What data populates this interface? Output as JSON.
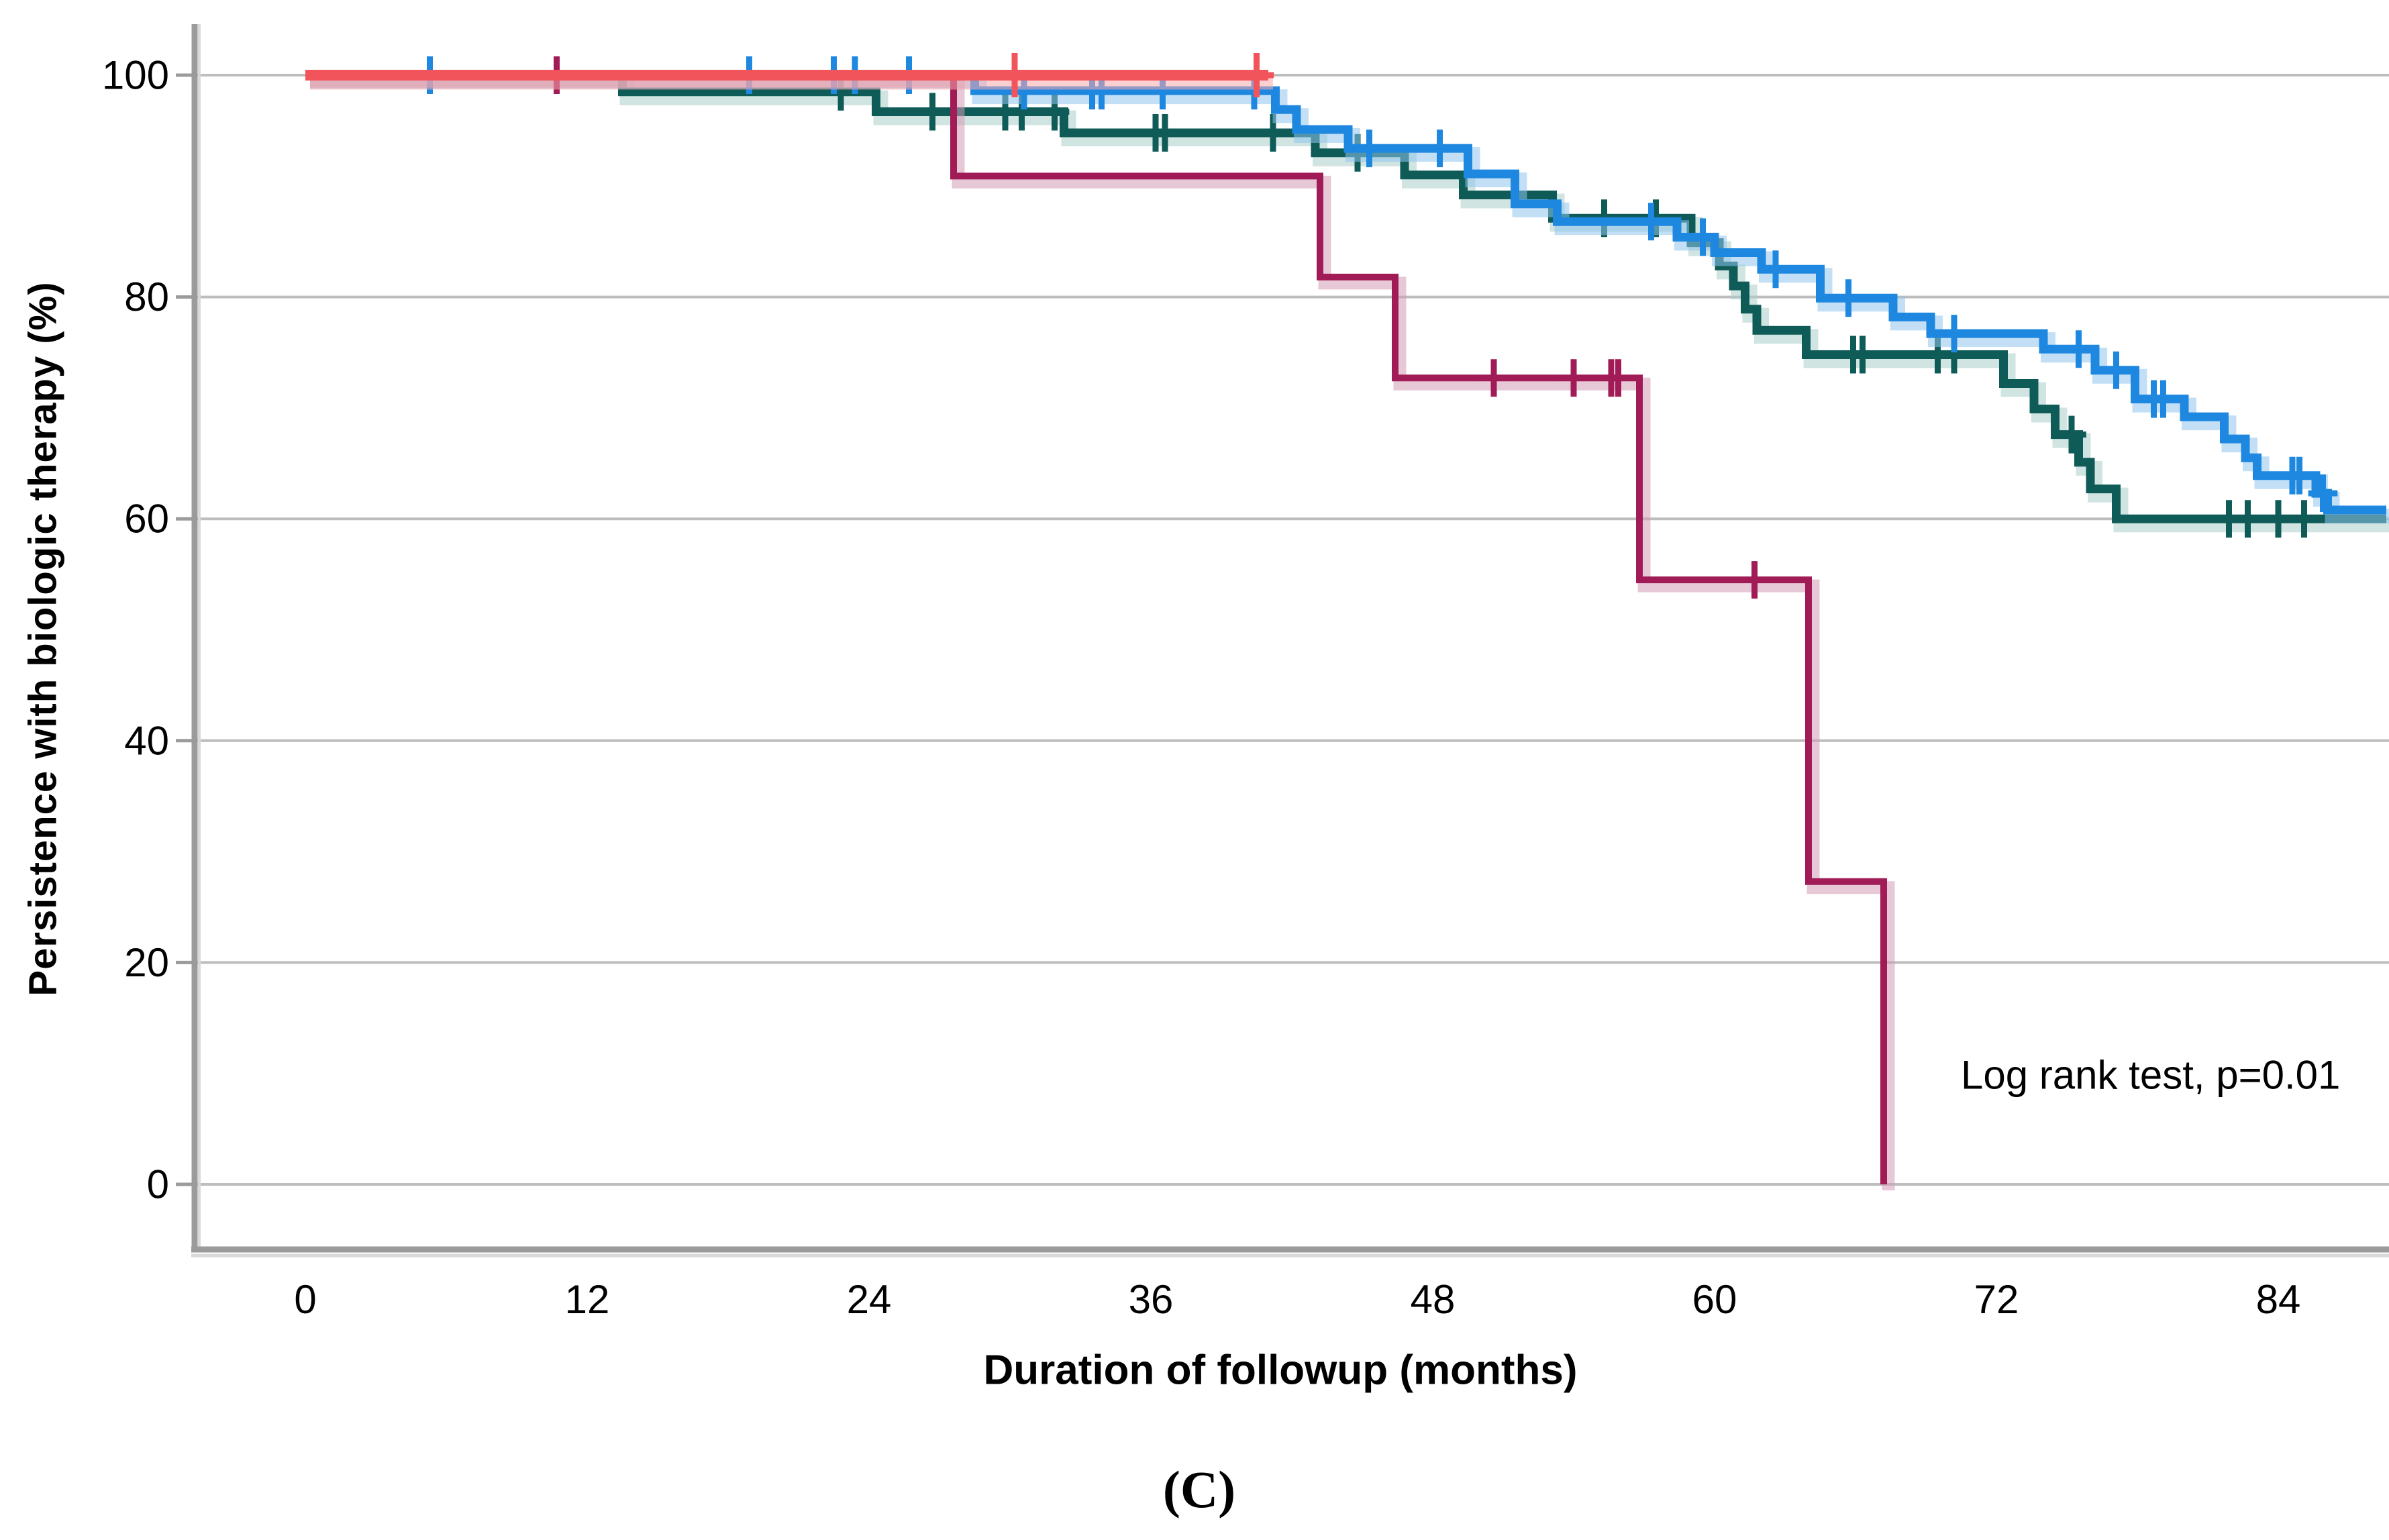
{
  "figure": {
    "caption": "(C)",
    "annotation": "Log rank test, p=0.01"
  },
  "chart_data": {
    "type": "line",
    "subtype": "kaplan-meier-step-curves",
    "title": "",
    "xlabel": "Duration of followup (months)",
    "ylabel": "Persistence with biologic therapy (%)",
    "x_ticks": [
      0,
      12,
      24,
      36,
      48,
      60,
      72,
      84
    ],
    "y_ticks": [
      0,
      20,
      40,
      60,
      80,
      100
    ],
    "xlim": [
      0,
      88.6
    ],
    "ylim": [
      0,
      100
    ],
    "grid": "horizontal-only",
    "grid_color": "#bdbdbd",
    "axis_color": "#9b9b9b",
    "legend_position": "none",
    "annotation": "Log rank test, p=0.01",
    "series": [
      {
        "id": "teal",
        "color": "#0f5b58",
        "halo": "#a9cdc8",
        "width": 13,
        "censor_size": 28,
        "end": 88.6,
        "steps": [
          [
            0,
            100
          ],
          [
            13.5,
            98.5
          ],
          [
            24.3,
            96.7
          ],
          [
            32.3,
            94.8
          ],
          [
            43.0,
            93.0
          ],
          [
            46.8,
            91.0
          ],
          [
            49.3,
            89.2
          ],
          [
            53.1,
            87.1
          ],
          [
            59.0,
            84.9
          ],
          [
            60.2,
            82.8
          ],
          [
            60.8,
            81.0
          ],
          [
            61.3,
            78.9
          ],
          [
            61.8,
            77.0
          ],
          [
            63.9,
            74.8
          ],
          [
            72.3,
            72.2
          ],
          [
            73.6,
            69.9
          ],
          [
            74.5,
            67.6
          ],
          [
            75.5,
            65.1
          ],
          [
            76.0,
            62.7
          ],
          [
            77.1,
            60.0
          ]
        ],
        "censors": [
          [
            22.8,
            98.5
          ],
          [
            26.7,
            96.7
          ],
          [
            29.8,
            96.7
          ],
          [
            30.5,
            96.7
          ],
          [
            31.9,
            96.7
          ],
          [
            36.2,
            94.8
          ],
          [
            36.6,
            94.8
          ],
          [
            41.2,
            94.8
          ],
          [
            44.8,
            93.0
          ],
          [
            55.3,
            87.1
          ],
          [
            57.5,
            87.1
          ],
          [
            65.9,
            74.8
          ],
          [
            66.3,
            74.8
          ],
          [
            69.5,
            74.8
          ],
          [
            70.2,
            74.8
          ],
          [
            75.2,
            67.6
          ],
          [
            81.9,
            60.0
          ],
          [
            82.7,
            60.0
          ],
          [
            84.0,
            60.0
          ],
          [
            85.1,
            60.0
          ]
        ]
      },
      {
        "id": "blue",
        "color": "#1e88e0",
        "halo": "#90c4ef",
        "width": 13,
        "censor_size": 28,
        "end": 88.6,
        "steps": [
          [
            0,
            100
          ],
          [
            28.5,
            98.6
          ],
          [
            41.3,
            96.9
          ],
          [
            42.2,
            95.1
          ],
          [
            44.4,
            93.4
          ],
          [
            49.5,
            91.1
          ],
          [
            51.5,
            88.4
          ],
          [
            53.3,
            86.8
          ],
          [
            58.4,
            85.4
          ],
          [
            60.0,
            84.0
          ],
          [
            62.0,
            82.5
          ],
          [
            64.5,
            79.9
          ],
          [
            67.6,
            78.2
          ],
          [
            69.2,
            76.7
          ],
          [
            74.0,
            75.3
          ],
          [
            76.2,
            73.4
          ],
          [
            77.9,
            70.8
          ],
          [
            80.0,
            69.2
          ],
          [
            81.7,
            67.2
          ],
          [
            82.6,
            65.5
          ],
          [
            83.1,
            63.9
          ],
          [
            85.6,
            62.3
          ],
          [
            86.1,
            60.8
          ]
        ],
        "censors": [
          [
            5.3,
            100
          ],
          [
            18.9,
            100
          ],
          [
            22.5,
            100
          ],
          [
            23.4,
            100
          ],
          [
            25.7,
            100
          ],
          [
            30.6,
            98.6
          ],
          [
            33.5,
            98.6
          ],
          [
            33.9,
            98.6
          ],
          [
            36.5,
            98.6
          ],
          [
            40.4,
            98.6
          ],
          [
            45.3,
            93.4
          ],
          [
            48.3,
            93.4
          ],
          [
            57.3,
            86.8
          ],
          [
            59.5,
            85.4
          ],
          [
            62.6,
            82.5
          ],
          [
            65.7,
            79.9
          ],
          [
            70.2,
            76.7
          ],
          [
            75.5,
            75.3
          ],
          [
            77.1,
            73.4
          ],
          [
            78.7,
            70.8
          ],
          [
            79.1,
            70.8
          ],
          [
            84.6,
            63.9
          ],
          [
            84.9,
            63.9
          ],
          [
            85.9,
            62.3
          ]
        ]
      },
      {
        "id": "maroon",
        "color": "#a11b57",
        "halo": "#d49ab5",
        "width": 10,
        "censor_size": 28,
        "end": 67.2,
        "steps": [
          [
            0,
            100
          ],
          [
            27.6,
            90.9
          ],
          [
            43.2,
            81.8
          ],
          [
            46.4,
            72.7
          ],
          [
            56.8,
            54.5
          ],
          [
            64.0,
            27.3
          ],
          [
            67.2,
            0
          ]
        ],
        "censors": [
          [
            10.7,
            100
          ],
          [
            50.6,
            72.7
          ],
          [
            54.0,
            72.7
          ],
          [
            55.6,
            72.7
          ],
          [
            55.9,
            72.7
          ],
          [
            61.7,
            54.5
          ]
        ]
      },
      {
        "id": "salmon",
        "color": "#f2545b",
        "halo": "#f9a8ac",
        "width": 16,
        "censor_size": 33,
        "end": 41.0,
        "steps": [
          [
            0,
            100
          ]
        ],
        "censors": [
          [
            30.2,
            100
          ],
          [
            40.5,
            100
          ]
        ]
      }
    ]
  }
}
